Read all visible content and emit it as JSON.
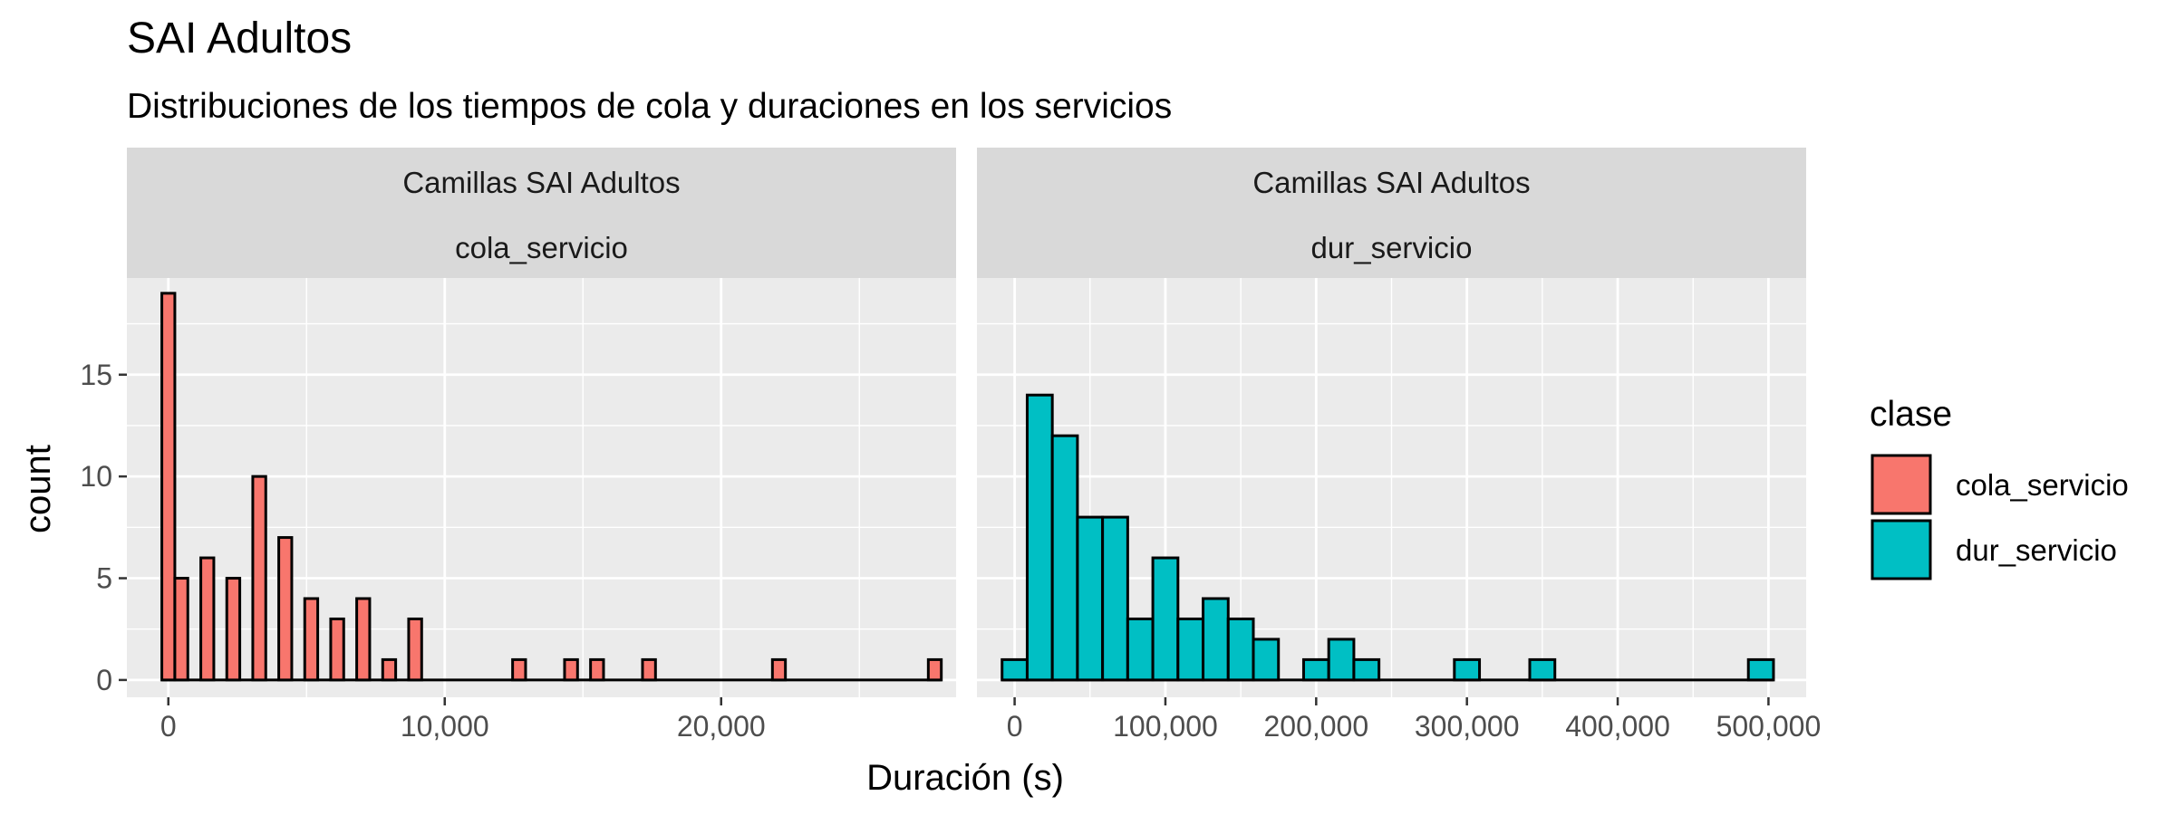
{
  "chart_data": {
    "type": "bar",
    "title": "SAI Adultos",
    "subtitle": "Distribuciones de los tiempos de cola y duraciones en los servicios",
    "xlabel": "Duración (s)",
    "ylabel": "count",
    "ylim": [
      0,
      19
    ],
    "yticks": [
      0,
      5,
      10,
      15
    ],
    "grid": true,
    "legend": {
      "title": "clase",
      "position": "right",
      "entries": [
        {
          "label": "cola_servicio",
          "color": "#F8766D"
        },
        {
          "label": "dur_servicio",
          "color": "#00BFC4"
        }
      ]
    },
    "panels": [
      {
        "strip_top": "Camillas SAI Adultos",
        "strip_bottom": "cola_servicio",
        "series": "cola_servicio",
        "color": "#F8766D",
        "xlim": [
          -1500,
          28500
        ],
        "xticks": [
          0,
          10000,
          20000
        ],
        "xtick_labels": [
          "0",
          "10,000",
          "20,000"
        ],
        "bin_width": 470,
        "bin_centers": [
          0,
          470,
          1410,
          2350,
          3290,
          4230,
          5170,
          6110,
          7050,
          7990,
          8930,
          12690,
          14570,
          15510,
          17390,
          22090,
          27730
        ],
        "counts": [
          19,
          5,
          6,
          5,
          10,
          7,
          4,
          3,
          4,
          1,
          3,
          1,
          1,
          1,
          1,
          1,
          1
        ],
        "span": [
          0,
          27730
        ]
      },
      {
        "strip_top": "Camillas SAI Adultos",
        "strip_bottom": "dur_servicio",
        "series": "dur_servicio",
        "color": "#00BFC4",
        "xlim": [
          -25000,
          525000
        ],
        "xticks": [
          0,
          100000,
          200000,
          300000,
          400000,
          500000
        ],
        "xtick_labels": [
          "0",
          "100,000",
          "200,000",
          "300,000",
          "400,000",
          "500,000"
        ],
        "bin_width": 16667,
        "bin_centers": [
          0,
          16667,
          33333,
          50000,
          66667,
          83333,
          100000,
          116667,
          133333,
          150000,
          166667,
          200000,
          216667,
          233333,
          300000,
          350000,
          495000
        ],
        "counts": [
          1,
          14,
          12,
          8,
          8,
          3,
          6,
          3,
          4,
          3,
          2,
          1,
          2,
          1,
          1,
          1,
          1
        ],
        "span": [
          0,
          495000
        ]
      }
    ]
  }
}
